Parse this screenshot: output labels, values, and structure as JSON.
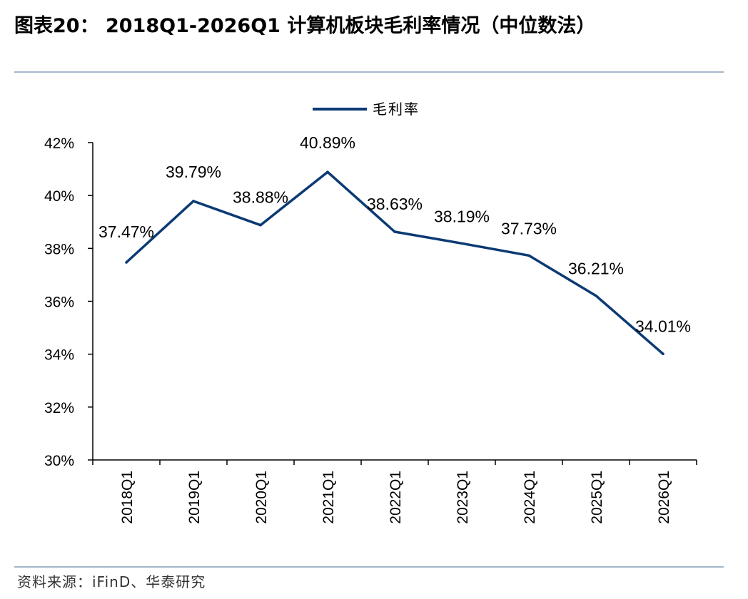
{
  "figure": {
    "title": "图表20：  2018Q1-2026Q1 计算机板块毛利率情况（中位数法）",
    "source": "资料来源：iFinD、华泰研究"
  },
  "chart_data": {
    "type": "line",
    "title": "",
    "xlabel": "",
    "ylabel": "",
    "categories": [
      "2018Q1",
      "2019Q1",
      "2020Q1",
      "2021Q1",
      "2022Q1",
      "2023Q1",
      "2024Q1",
      "2025Q1",
      "2026Q1"
    ],
    "series": [
      {
        "name": "毛利率",
        "values": [
          37.47,
          39.79,
          38.88,
          40.89,
          38.63,
          38.19,
          37.73,
          36.21,
          34.01
        ],
        "labels": [
          "37.47%",
          "39.79%",
          "38.88%",
          "40.89%",
          "38.63%",
          "38.19%",
          "37.73%",
          "36.21%",
          "34.01%"
        ],
        "color": "#0b3a74"
      }
    ],
    "ylim": [
      30,
      42
    ],
    "yticks": [
      30,
      32,
      34,
      36,
      38,
      40,
      42
    ],
    "ytick_labels": [
      "30%",
      "32%",
      "34%",
      "36%",
      "38%",
      "40%",
      "42%"
    ],
    "grid": false,
    "legend_position": "top-center"
  }
}
